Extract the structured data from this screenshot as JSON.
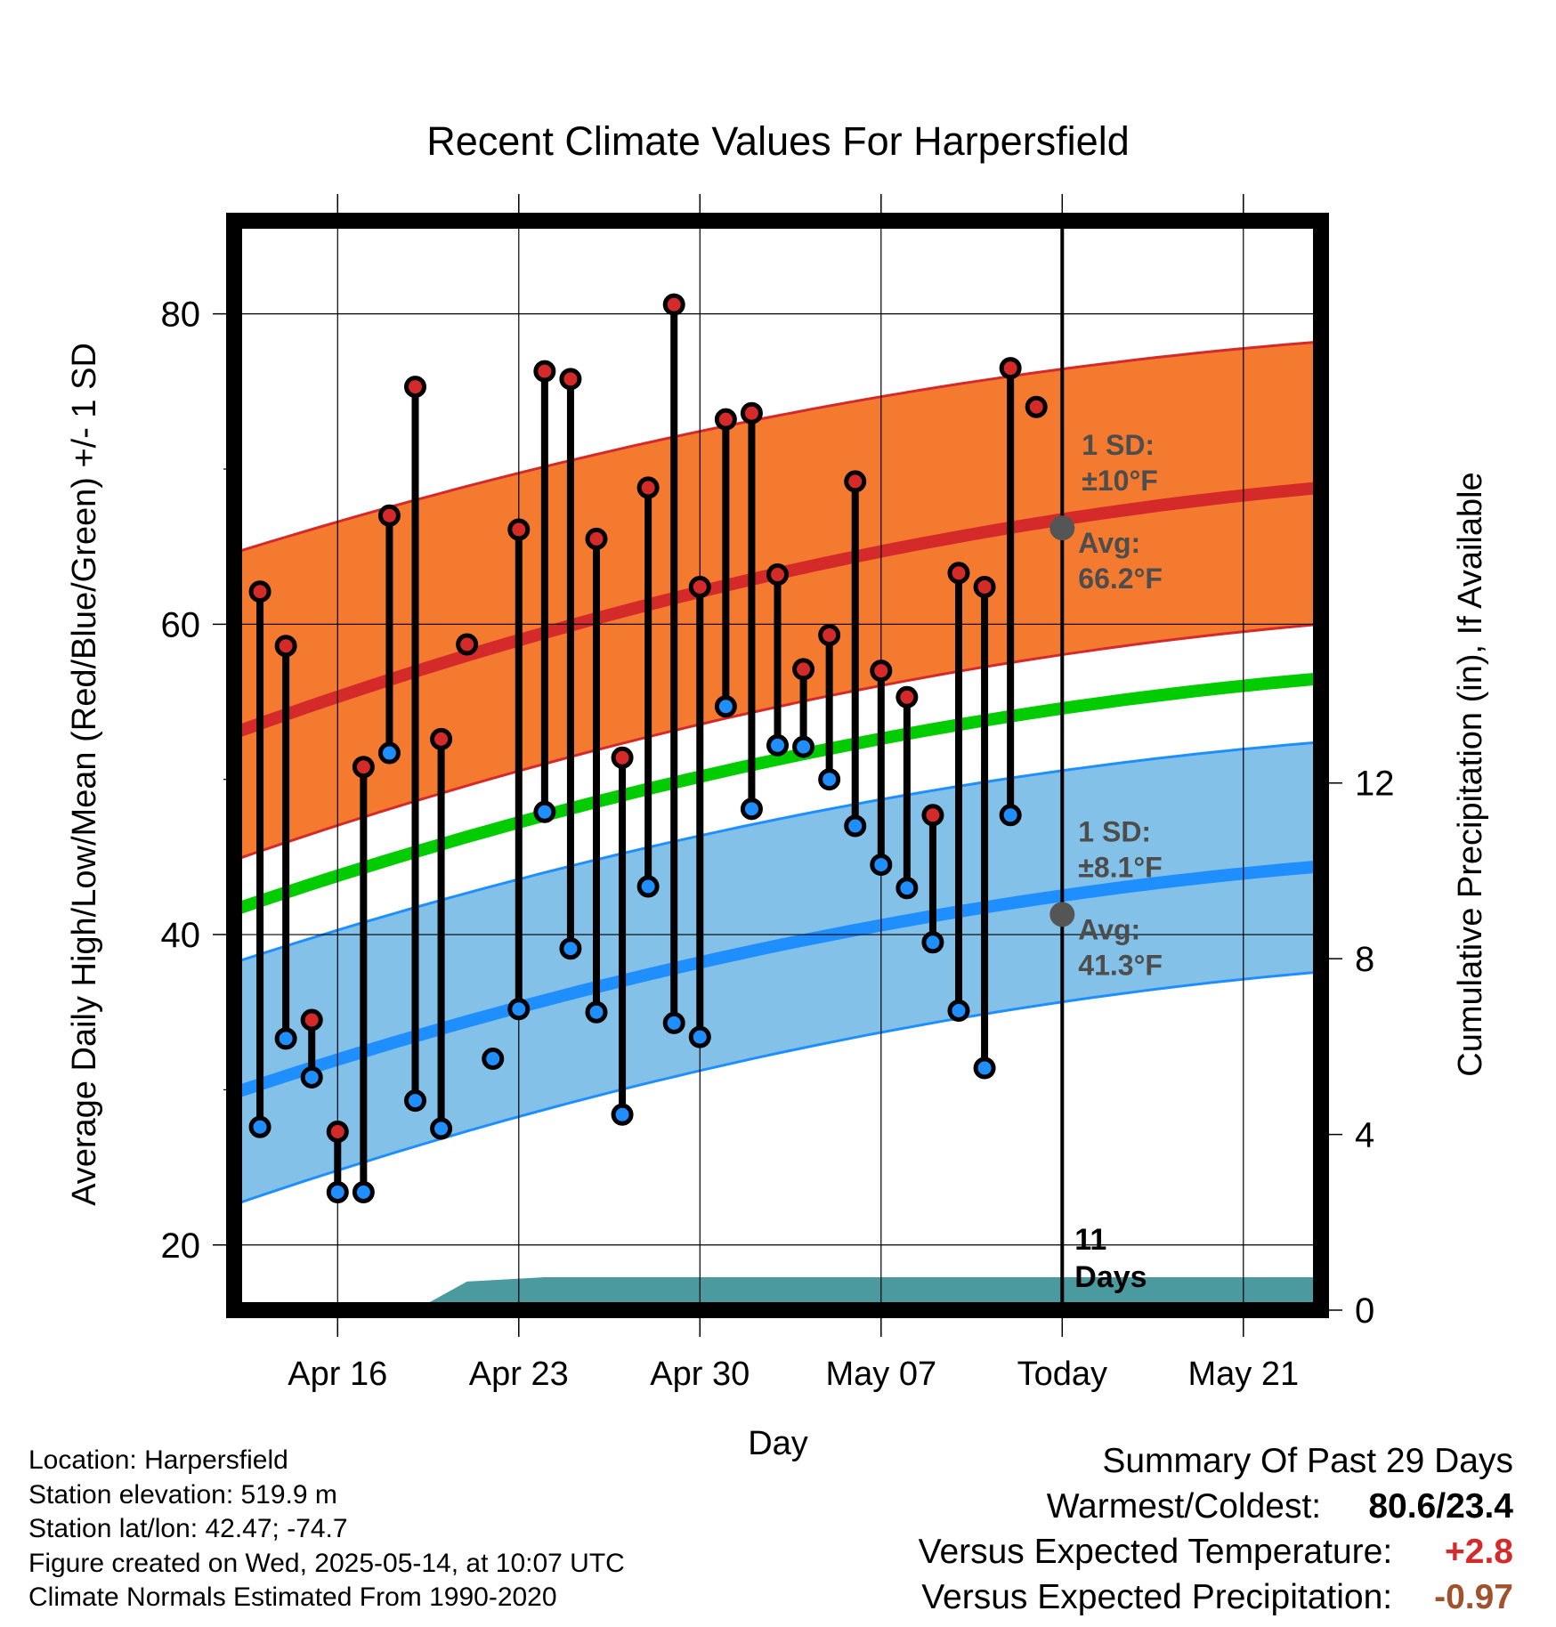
{
  "chart_data": {
    "type": "line",
    "title": "Recent Climate Values For Harpersfield",
    "xlabel": "Day",
    "ylabel": "Average Daily High/Low/Mean (Red/Blue/Green) +/- 1 SD",
    "y2label": "Cumulative Precipitation (in), If Available",
    "ylim": [
      15.8,
      86
    ],
    "y_ticks": [
      20,
      40,
      60,
      80
    ],
    "y2lim": [
      0,
      24.8
    ],
    "y2_ticks": [
      0,
      4,
      8,
      12
    ],
    "xlim": [
      "2025-04-12",
      "2025-05-24"
    ],
    "x_ticks": [
      {
        "date": "2025-04-16",
        "label": "Apr 16"
      },
      {
        "date": "2025-04-23",
        "label": "Apr 23"
      },
      {
        "date": "2025-04-30",
        "label": "Apr 30"
      },
      {
        "date": "2025-05-07",
        "label": "May 07"
      },
      {
        "date": "2025-05-14",
        "label": "Today"
      },
      {
        "date": "2025-05-21",
        "label": "May 21"
      }
    ],
    "grid": true,
    "today": "2025-05-14",
    "today_label": [
      "11",
      "Days"
    ],
    "normals": {
      "dates": [
        "2025-04-12",
        "2025-05-24"
      ],
      "high_mean": [
        53.0,
        68.8
      ],
      "high_sd_lower": [
        44.8,
        60.0
      ],
      "high_sd_upper": [
        64.6,
        78.2
      ],
      "mean": [
        41.6,
        56.5
      ],
      "low_mean": [
        29.8,
        44.4
      ],
      "low_sd_lower": [
        22.6,
        37.6
      ],
      "low_sd_upper": [
        38.2,
        52.4
      ]
    },
    "observations": {
      "dates": [
        "2025-04-13",
        "2025-04-14",
        "2025-04-15",
        "2025-04-16",
        "2025-04-17",
        "2025-04-18",
        "2025-04-19",
        "2025-04-20",
        "2025-04-21",
        "2025-04-22",
        "2025-04-23",
        "2025-04-24",
        "2025-04-25",
        "2025-04-26",
        "2025-04-27",
        "2025-04-28",
        "2025-04-29",
        "2025-04-30",
        "2025-05-01",
        "2025-05-02",
        "2025-05-03",
        "2025-05-04",
        "2025-05-05",
        "2025-05-06",
        "2025-05-07",
        "2025-05-08",
        "2025-05-09",
        "2025-05-10",
        "2025-05-11",
        "2025-05-12",
        "2025-05-13"
      ],
      "highs": [
        62.1,
        58.6,
        34.5,
        27.3,
        50.8,
        67.0,
        75.3,
        52.6,
        58.7,
        null,
        66.1,
        76.3,
        75.8,
        65.5,
        51.4,
        68.8,
        80.6,
        62.4,
        73.2,
        73.6,
        63.2,
        57.1,
        59.3,
        69.2,
        57.0,
        55.3,
        47.7,
        63.3,
        62.4,
        76.5,
        74.0
      ],
      "lows": [
        27.6,
        33.3,
        30.8,
        23.4,
        23.4,
        51.7,
        29.3,
        27.5,
        null,
        32.0,
        35.2,
        47.9,
        39.1,
        35.0,
        28.4,
        43.1,
        34.3,
        33.4,
        54.7,
        48.1,
        52.2,
        52.1,
        50.0,
        47.0,
        44.5,
        43.0,
        39.5,
        35.1,
        31.4,
        47.7,
        null
      ]
    },
    "precip_cumulative": {
      "dates": [
        "2025-04-12",
        "2025-04-19",
        "2025-04-21",
        "2025-04-24",
        "2025-05-24"
      ],
      "values": [
        0,
        0,
        0.65,
        0.75,
        0.75
      ]
    },
    "annotations": {
      "high": {
        "sd_label": "1 SD:",
        "sd_value": "±10°F",
        "avg_label": "Avg:",
        "avg_value": "66.2°F",
        "avg_temp": 66.2
      },
      "low": {
        "sd_label": "1 SD:",
        "sd_value": "±8.1°F",
        "avg_label": "Avg:",
        "avg_value": "41.3°F",
        "avg_temp": 41.3
      }
    },
    "colors": {
      "high_band": "#f47a30",
      "high_line": "#d42a2a",
      "low_band": "#84c1e8",
      "low_line": "#1f8fff",
      "mean_line": "#00cc00",
      "precip": "#4a9a9f",
      "high_dot": "#d42a2a",
      "low_dot": "#1f8fff",
      "today_dot": "#555555"
    }
  },
  "info": {
    "location": "Location: Harpersfield",
    "elevation": "Station elevation: 519.9 m",
    "latlon": "Station lat/lon: 42.47; -74.7",
    "created": "Figure created on Wed, 2025-05-14, at 10:07 UTC",
    "normals": "Climate Normals Estimated From 1990-2020"
  },
  "summary": {
    "title": "Summary Of Past 29 Days",
    "warm_cold_label": "Warmest/Coldest:",
    "warm_cold_value": "80.6/23.4",
    "temp_label": "Versus Expected Temperature:",
    "temp_value": "+2.8",
    "temp_color": "#d42a2a",
    "precip_label": "Versus Expected Precipitation:",
    "precip_value": "-0.97",
    "precip_color": "#a0522d"
  }
}
